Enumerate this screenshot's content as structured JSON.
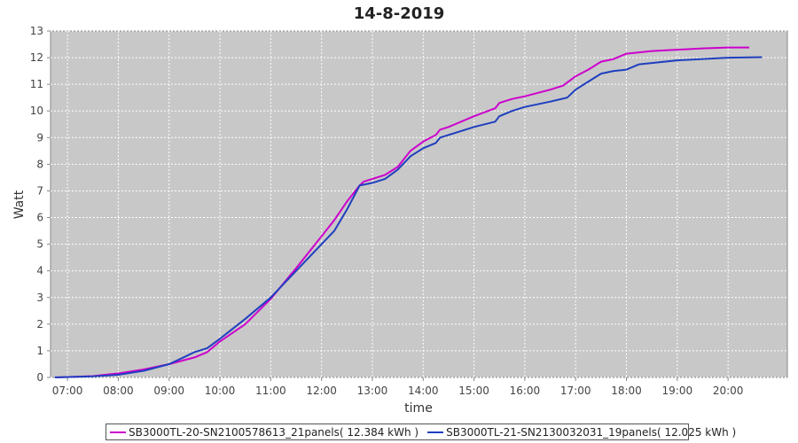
{
  "chart_data": {
    "type": "line",
    "title": "14-8-2019",
    "xlabel": "time",
    "ylabel": "Watt",
    "ylim": [
      0,
      13
    ],
    "xlim": [
      "06:40",
      "21:10"
    ],
    "y_ticks": [
      "0",
      "1",
      "2",
      "3",
      "4",
      "5",
      "6",
      "7",
      "8",
      "9",
      "10",
      "11",
      "12",
      "13"
    ],
    "x_ticks": [
      "07:00",
      "08:00",
      "09:00",
      "10:00",
      "11:00",
      "12:00",
      "13:00",
      "14:00",
      "15:00",
      "16:00",
      "17:00",
      "18:00",
      "19:00",
      "20:00"
    ],
    "grid": true,
    "legend_position": "bottom",
    "series": [
      {
        "name": "SB3000TL-20-SN2100578613_21panels( 12.384 kWh )",
        "color": "#cc00cc",
        "x": [
          "06:45",
          "07:30",
          "08:00",
          "08:30",
          "09:00",
          "09:30",
          "09:45",
          "10:00",
          "10:30",
          "11:00",
          "11:30",
          "12:00",
          "12:15",
          "12:30",
          "12:45",
          "12:50",
          "13:00",
          "13:15",
          "13:30",
          "13:45",
          "14:00",
          "14:15",
          "14:20",
          "14:30",
          "15:00",
          "15:25",
          "15:30",
          "15:45",
          "16:00",
          "16:30",
          "16:45",
          "17:00",
          "17:15",
          "17:30",
          "17:45",
          "18:00",
          "18:30",
          "19:00",
          "19:30",
          "20:00",
          "20:25"
        ],
        "y": [
          0.0,
          0.05,
          0.15,
          0.3,
          0.5,
          0.75,
          0.95,
          1.35,
          2.0,
          2.95,
          4.1,
          5.3,
          5.9,
          6.6,
          7.2,
          7.35,
          7.45,
          7.6,
          7.9,
          8.5,
          8.85,
          9.1,
          9.3,
          9.4,
          9.8,
          10.1,
          10.3,
          10.45,
          10.55,
          10.8,
          10.95,
          11.3,
          11.55,
          11.85,
          11.95,
          12.15,
          12.25,
          12.3,
          12.35,
          12.38,
          12.38
        ]
      },
      {
        "name": "SB3000TL-21-SN2130032031_19panels( 12.025 kWh )",
        "color": "#1f3fbf",
        "x": [
          "06:45",
          "07:30",
          "08:00",
          "08:30",
          "09:00",
          "09:15",
          "09:30",
          "09:45",
          "10:00",
          "10:30",
          "11:00",
          "11:30",
          "12:00",
          "12:15",
          "12:30",
          "12:45",
          "13:00",
          "13:15",
          "13:30",
          "13:45",
          "14:00",
          "14:15",
          "14:20",
          "14:30",
          "15:00",
          "15:25",
          "15:30",
          "15:45",
          "16:00",
          "16:30",
          "16:50",
          "17:00",
          "17:15",
          "17:30",
          "17:45",
          "18:00",
          "18:15",
          "18:30",
          "19:00",
          "19:30",
          "20:00",
          "20:40"
        ],
        "y": [
          0.0,
          0.04,
          0.1,
          0.25,
          0.5,
          0.72,
          0.95,
          1.1,
          1.45,
          2.2,
          3.0,
          4.0,
          5.0,
          5.5,
          6.3,
          7.2,
          7.3,
          7.45,
          7.8,
          8.3,
          8.6,
          8.8,
          9.0,
          9.1,
          9.4,
          9.6,
          9.8,
          10.0,
          10.15,
          10.35,
          10.5,
          10.8,
          11.1,
          11.4,
          11.5,
          11.55,
          11.75,
          11.8,
          11.9,
          11.95,
          12.0,
          12.02
        ]
      }
    ]
  }
}
